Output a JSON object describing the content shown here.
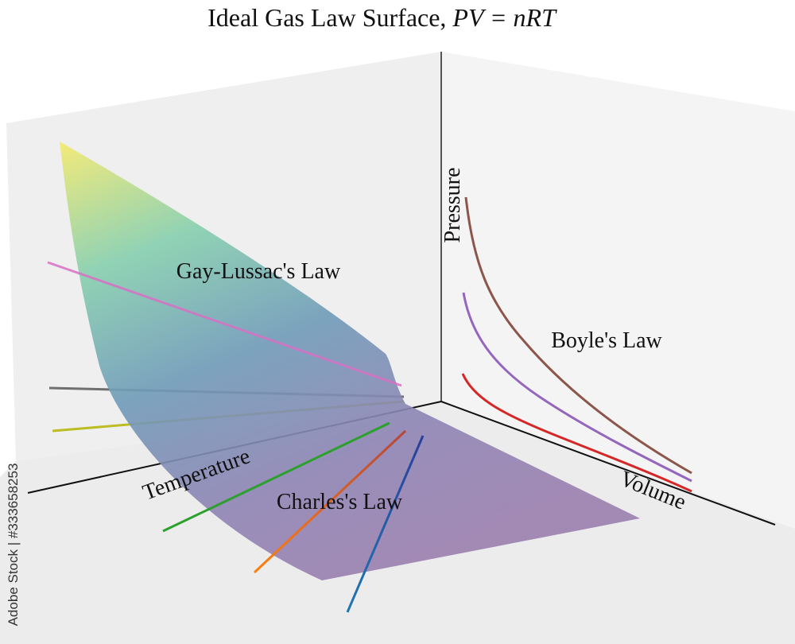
{
  "title": {
    "text": "Ideal Gas Law Surface,",
    "formula": "PV = nRT"
  },
  "axes": {
    "temperature": "Temperature",
    "volume": "Volume",
    "pressure": "Pressure"
  },
  "annotations": {
    "gay_lussac": "Gay-Lussac's Law",
    "charles": "Charles's Law",
    "boyle": "Boyle's Law"
  },
  "watermark": "Adobe Stock | #333658253"
}
